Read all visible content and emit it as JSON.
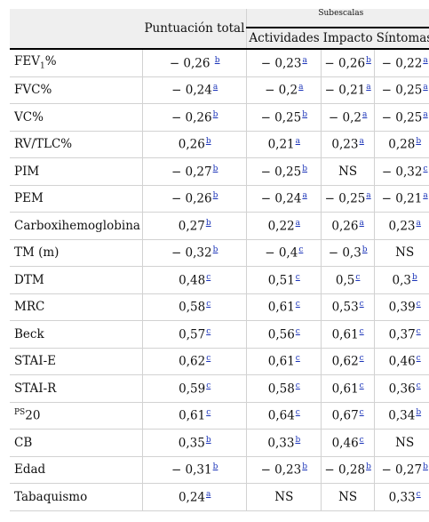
{
  "header": {
    "total": "Puntuación total",
    "subscales": "Subescalas",
    "col_activities": "Actividades",
    "col_impact": "Impacto",
    "col_symptoms": "Síntomas"
  },
  "rows": [
    {
      "label": "FEV",
      "label_sub": "1",
      "label_after": "%",
      "cells": [
        [
          "− 0,26 ",
          "b"
        ],
        [
          "− 0,23",
          "a"
        ],
        [
          "− 0,26",
          "b"
        ],
        [
          "− 0,22",
          "a"
        ]
      ]
    },
    {
      "label": "FVC%",
      "cells": [
        [
          "− 0,24",
          "a"
        ],
        [
          "− 0,2",
          "a"
        ],
        [
          "− 0,21",
          "a"
        ],
        [
          "− 0,25",
          "a"
        ]
      ]
    },
    {
      "label": "VC%",
      "cells": [
        [
          "− 0,26",
          "b"
        ],
        [
          "− 0,25",
          "b"
        ],
        [
          "− 0,2",
          "a"
        ],
        [
          "− 0,25",
          "a"
        ]
      ]
    },
    {
      "label": "RV/TLC%",
      "cells": [
        [
          "0,26",
          "b"
        ],
        [
          "0,21",
          "a"
        ],
        [
          "0,23",
          "a"
        ],
        [
          "0,28",
          "b"
        ]
      ]
    },
    {
      "label": "PIM",
      "cells": [
        [
          "− 0,27",
          "b"
        ],
        [
          "− 0,25",
          "b"
        ],
        [
          "NS",
          ""
        ],
        [
          "− 0,32",
          "c"
        ]
      ]
    },
    {
      "label": "PEM",
      "cells": [
        [
          "− 0,26",
          "b"
        ],
        [
          "− 0,24",
          "a"
        ],
        [
          "− 0,25",
          "a"
        ],
        [
          "− 0,21",
          "a"
        ]
      ]
    },
    {
      "label": "Carboxihemoglobina",
      "cells": [
        [
          "0,27",
          "b"
        ],
        [
          "0,22",
          "a"
        ],
        [
          "0,26",
          "a"
        ],
        [
          "0,23",
          "a"
        ]
      ]
    },
    {
      "label": "TM (m)",
      "cells": [
        [
          "− 0,32",
          "b"
        ],
        [
          "− 0,4",
          "c"
        ],
        [
          "− 0,3",
          "b"
        ],
        [
          "NS",
          ""
        ]
      ]
    },
    {
      "label": "DTM",
      "cells": [
        [
          "0,48",
          "c"
        ],
        [
          "0,51",
          "c"
        ],
        [
          "0,5",
          "c"
        ],
        [
          "0,3",
          "b"
        ]
      ]
    },
    {
      "label": "MRC",
      "cells": [
        [
          "0,58",
          "c"
        ],
        [
          "0,61",
          "c"
        ],
        [
          "0,53",
          "c"
        ],
        [
          "0,39",
          "c"
        ]
      ]
    },
    {
      "label": "Beck",
      "cells": [
        [
          "0,57",
          "c"
        ],
        [
          "0,56",
          "c"
        ],
        [
          "0,61",
          "c"
        ],
        [
          "0,37",
          "c"
        ]
      ]
    },
    {
      "label": "STAI-E",
      "cells": [
        [
          "0,62",
          "c"
        ],
        [
          "0,61",
          "c"
        ],
        [
          "0,62",
          "c"
        ],
        [
          "0,46",
          "c"
        ]
      ]
    },
    {
      "label": "STAI-R",
      "cells": [
        [
          "0,59",
          "c"
        ],
        [
          "0,58",
          "c"
        ],
        [
          "0,61",
          "c"
        ],
        [
          "0,36",
          "c"
        ]
      ]
    },
    {
      "label": "20",
      "label_pre_sup": "PS",
      "cells": [
        [
          "0,61",
          "c"
        ],
        [
          "0,64",
          "c"
        ],
        [
          "0,67",
          "c"
        ],
        [
          "0,34",
          "b"
        ]
      ]
    },
    {
      "label": "CB",
      "cells": [
        [
          "0,35",
          "b"
        ],
        [
          "0,33",
          "b"
        ],
        [
          "0,46",
          "c"
        ],
        [
          "NS",
          ""
        ]
      ]
    },
    {
      "label": "Edad",
      "cells": [
        [
          "− 0,31",
          "b"
        ],
        [
          "− 0,23",
          "b"
        ],
        [
          "− 0,28",
          "b"
        ],
        [
          "− 0,27",
          "b"
        ]
      ]
    },
    {
      "label": "Tabaquismo",
      "cells": [
        [
          "0,24",
          "a"
        ],
        [
          "NS",
          ""
        ],
        [
          "NS",
          ""
        ],
        [
          "0,33",
          "c"
        ]
      ]
    }
  ]
}
